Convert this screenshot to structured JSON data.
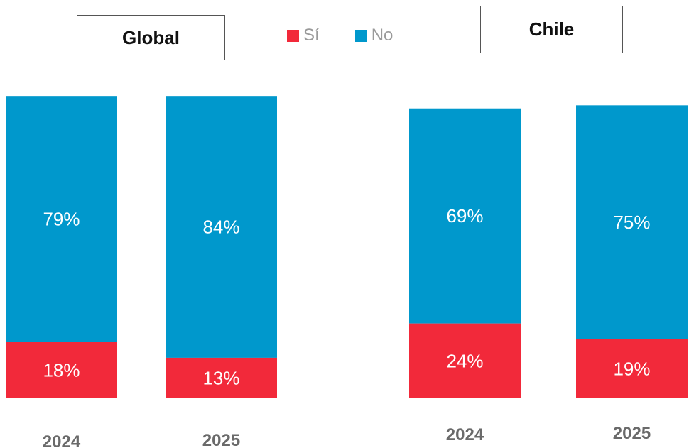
{
  "legend": {
    "items": [
      {
        "label": "Sí",
        "color": "#F2293A"
      },
      {
        "label": "No",
        "color": "#0098CC"
      }
    ]
  },
  "chart_data": [
    {
      "type": "bar",
      "stacked": true,
      "title": "Global",
      "categories": [
        "2024",
        "2025"
      ],
      "series": [
        {
          "name": "Sí",
          "color": "#F2293A",
          "values": [
            18,
            13
          ],
          "labels": [
            "18%",
            "13%"
          ]
        },
        {
          "name": "No",
          "color": "#0098CC",
          "values": [
            79,
            84
          ],
          "labels": [
            "79%",
            "84%"
          ]
        }
      ]
    },
    {
      "type": "bar",
      "stacked": true,
      "title": "Chile",
      "categories": [
        "2024",
        "2025"
      ],
      "series": [
        {
          "name": "Sí",
          "color": "#F2293A",
          "values": [
            24,
            19
          ],
          "labels": [
            "24%",
            "19%"
          ]
        },
        {
          "name": "No",
          "color": "#0098CC",
          "values": [
            69,
            75
          ],
          "labels": [
            "69%",
            "75%"
          ]
        }
      ]
    }
  ]
}
